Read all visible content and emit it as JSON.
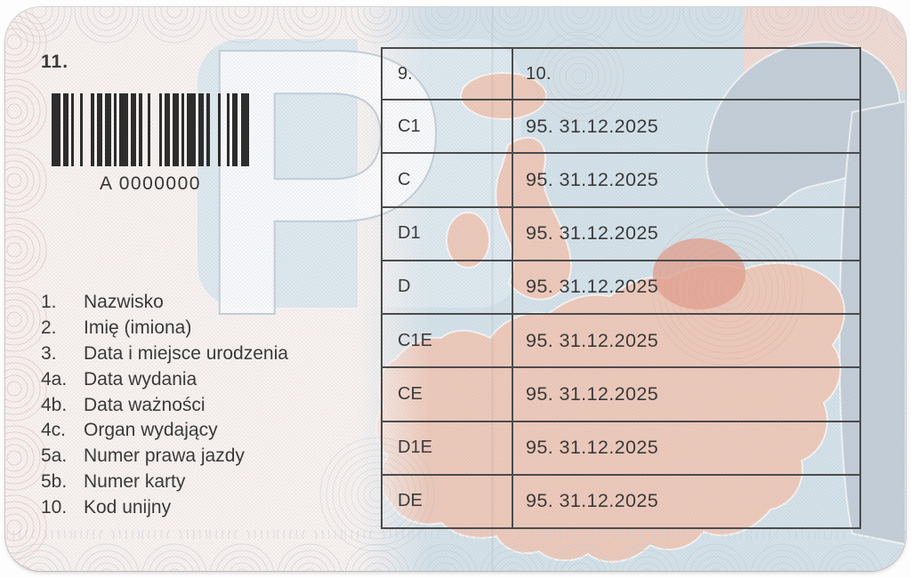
{
  "card": {
    "field_11_label": "11.",
    "watermark_letter": "P",
    "barcode": {
      "value": "A 0000000",
      "pattern": "312112131121211131211213112121113121131211213"
    },
    "fields": {
      "items": [
        {
          "num": "1.",
          "label": "Nazwisko"
        },
        {
          "num": "2.",
          "label": "Imię (imiona)"
        },
        {
          "num": "3.",
          "label": "Data i miejsce urodzenia"
        },
        {
          "num": "4a.",
          "label": "Data wydania"
        },
        {
          "num": "4b.",
          "label": "Data ważności"
        },
        {
          "num": "4c.",
          "label": "Organ wydający"
        },
        {
          "num": "5a.",
          "label": "Numer prawa jazdy"
        },
        {
          "num": "5b.",
          "label": "Numer karty"
        },
        {
          "num": "10.",
          "label": "Kod unijny"
        }
      ]
    },
    "table": {
      "headers": [
        "9.",
        "10."
      ],
      "rows": [
        {
          "category": "C1",
          "code": "95. 31.12.2025"
        },
        {
          "category": "C",
          "code": "95. 31.12.2025"
        },
        {
          "category": "D1",
          "code": "95. 31.12.2025"
        },
        {
          "category": "D",
          "code": "95. 31.12.2025"
        },
        {
          "category": "C1E",
          "code": "95. 31.12.2025"
        },
        {
          "category": "CE",
          "code": "95. 31.12.2025"
        },
        {
          "category": "D1E",
          "code": "95. 31.12.2025"
        },
        {
          "category": "DE",
          "code": "95. 31.12.2025"
        }
      ]
    },
    "colors": {
      "ink": "#3a3a3a",
      "table_border": "#4b4b4b",
      "sea": "#d3e2ea",
      "land_salmon": "#edc9ba",
      "land_highlight": "#e2a18f",
      "land_gray": "#c2ced8",
      "edge_rings_pink": "#e3bcb6",
      "edge_rings_blue": "#c4cdd6"
    }
  }
}
